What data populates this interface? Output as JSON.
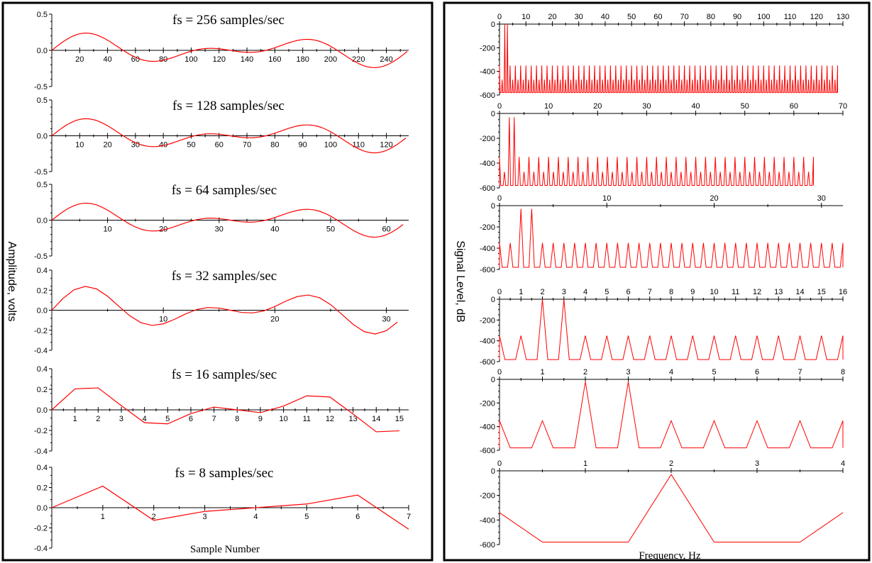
{
  "colors": {
    "trace": "#ff0000",
    "axis": "#000000",
    "frame": "#000000"
  },
  "left_panel": {
    "ylabel": "Amplitude, volts",
    "xlabel": "Sample Number"
  },
  "right_panel": {
    "ylabel": "Signal Level, dB",
    "xlabel": "Frequency, Hz"
  },
  "chart_data": [
    {
      "type": "line",
      "title": "fs = 256 samples/sec",
      "xlim": [
        0,
        256
      ],
      "ylim": [
        -0.5,
        0.5
      ],
      "xticks": [
        20,
        40,
        60,
        80,
        100,
        120,
        140,
        160,
        180,
        200,
        220,
        240
      ],
      "yticks": [
        0.5,
        0.0,
        -0.5
      ],
      "ytick_labels": [
        "0.5",
        "0.0",
        "-0.5"
      ],
      "series": [
        {
          "fs": 256,
          "n": 256,
          "signal": "0.125*sin(2*pi*2*t) + 0.125*sin(2*pi*3*t)"
        }
      ]
    },
    {
      "type": "line",
      "title": "fs = 128 samples/sec",
      "xlim": [
        0,
        128
      ],
      "ylim": [
        -0.5,
        0.5
      ],
      "xticks": [
        10,
        20,
        30,
        40,
        50,
        60,
        70,
        80,
        90,
        100,
        110,
        120
      ],
      "yticks": [
        0.5,
        0.0,
        -0.5
      ],
      "ytick_labels": [
        "0.5",
        "0.0",
        "-0.5"
      ],
      "series": [
        {
          "fs": 128,
          "n": 128,
          "signal": "0.125*sin(2*pi*2*t) + 0.125*sin(2*pi*3*t)"
        }
      ]
    },
    {
      "type": "line",
      "title": "fs = 64 samples/sec",
      "xlim": [
        0,
        64
      ],
      "ylim": [
        -0.5,
        0.5
      ],
      "xticks": [
        10,
        20,
        30,
        40,
        50,
        60
      ],
      "yticks": [
        0.5,
        0.0,
        -0.5
      ],
      "ytick_labels": [
        "0.5",
        "0.0",
        "-0.5"
      ],
      "series": [
        {
          "fs": 64,
          "n": 64,
          "signal": "0.125*sin(2*pi*2*t) + 0.125*sin(2*pi*3*t)"
        }
      ]
    },
    {
      "type": "line",
      "title": "fs = 32 samples/sec",
      "xlim": [
        0,
        32
      ],
      "ylim": [
        -0.4,
        0.4
      ],
      "xticks": [
        10,
        20,
        30
      ],
      "yticks": [
        0.4,
        0.2,
        0.0,
        -0.2,
        -0.4
      ],
      "ytick_labels": [
        "0.4",
        "0.2",
        "0.0",
        "-0.2",
        "-0.4"
      ],
      "series": [
        {
          "fs": 32,
          "n": 32,
          "signal": "0.125*sin(2*pi*2*t) + 0.125*sin(2*pi*3*t)"
        }
      ]
    },
    {
      "type": "line",
      "title": "fs = 16 samples/sec",
      "xlim": [
        0,
        15.4
      ],
      "ylim": [
        -0.4,
        0.4
      ],
      "xticks": [
        1,
        2,
        3,
        4,
        5,
        6,
        7,
        8,
        9,
        10,
        11,
        12,
        13,
        14,
        15
      ],
      "yticks": [
        0.4,
        0.2,
        0.0,
        -0.2,
        -0.4
      ],
      "ytick_labels": [
        "0.4",
        "0.2",
        "0.0",
        "-0.2",
        "-0.4"
      ],
      "series": [
        {
          "fs": 16,
          "n": 16,
          "signal": "0.125*sin(2*pi*2*t) + 0.125*sin(2*pi*3*t)"
        }
      ]
    },
    {
      "type": "line",
      "title": "fs = 8 samples/sec",
      "xlim": [
        0,
        7
      ],
      "ylim": [
        -0.4,
        0.4
      ],
      "xticks": [
        1,
        2,
        3,
        4,
        5,
        6,
        7
      ],
      "yticks": [
        0.4,
        0.2,
        0.0,
        -0.2,
        -0.4
      ],
      "ytick_labels": [
        "0.4",
        "0.2",
        "0.0",
        "-0.2",
        "-0.4"
      ],
      "series": [
        {
          "fs": 8,
          "n": 8,
          "signal": "0.125*sin(2*pi*2*t) + 0.125*sin(2*pi*3*t)"
        }
      ]
    },
    {
      "type": "line",
      "title": "",
      "xlim": [
        0,
        130
      ],
      "ylim": [
        -600,
        0
      ],
      "xticks": [
        0,
        10,
        20,
        30,
        40,
        50,
        60,
        70,
        80,
        90,
        100,
        110,
        120,
        130
      ],
      "yticks": [
        0,
        -200,
        -400,
        -600
      ],
      "ytick_labels": [
        "0",
        "-200",
        "-400",
        "-600"
      ],
      "series": [
        {
          "fs": 256,
          "n": 256,
          "peaks_hz": [
            2,
            3
          ],
          "peak_db": 0,
          "spur_db": -350,
          "spur_low_db": -470,
          "floor_db": -580
        }
      ]
    },
    {
      "type": "line",
      "title": "",
      "xlim": [
        0,
        70
      ],
      "ylim": [
        -600,
        0
      ],
      "xticks": [
        0,
        10,
        20,
        30,
        40,
        50,
        60,
        70
      ],
      "yticks": [
        0,
        -200,
        -400,
        -600
      ],
      "ytick_labels": [
        "0",
        "-200",
        "-400",
        "-600"
      ],
      "series": [
        {
          "fs": 128,
          "n": 128,
          "peaks_hz": [
            2,
            3
          ],
          "peak_db": -30,
          "spur_db": -350,
          "spur_low_db": -470,
          "floor_db": -580
        }
      ]
    },
    {
      "type": "line",
      "title": "",
      "xlim": [
        0,
        32
      ],
      "ylim": [
        -600,
        0
      ],
      "xticks": [
        0,
        10,
        20,
        30
      ],
      "yticks": [
        0,
        -200,
        -400,
        -600
      ],
      "ytick_labels": [
        "0",
        "-200",
        "-400",
        "-600"
      ],
      "series": [
        {
          "fs": 64,
          "n": 64,
          "peaks_hz": [
            2,
            3
          ],
          "peak_db": -30,
          "spur_db": -350,
          "floor_db": -580
        }
      ]
    },
    {
      "type": "line",
      "title": "",
      "xlim": [
        0,
        16
      ],
      "ylim": [
        -600,
        0
      ],
      "xticks": [
        0,
        1,
        2,
        3,
        4,
        5,
        6,
        7,
        8,
        9,
        10,
        11,
        12,
        13,
        14,
        15,
        16
      ],
      "yticks": [
        0,
        -200,
        -400,
        -600
      ],
      "ytick_labels": [
        "0",
        "-200",
        "-400",
        "-600"
      ],
      "series": [
        {
          "fs": 32,
          "n": 32,
          "peaks_hz": [
            2,
            3
          ],
          "peak_db": 0,
          "spur_db": -350,
          "floor_db": -580
        }
      ]
    },
    {
      "type": "line",
      "title": "",
      "xlim": [
        0,
        8
      ],
      "ylim": [
        -600,
        0
      ],
      "xticks": [
        0,
        1,
        2,
        3,
        4,
        5,
        6,
        7,
        8
      ],
      "yticks": [
        0,
        -200,
        -400,
        -600
      ],
      "ytick_labels": [
        "0",
        "-200",
        "-400",
        "-600"
      ],
      "series": [
        {
          "fs": 16,
          "n": 16,
          "peaks_hz": [
            2,
            3
          ],
          "peak_db": -20,
          "spur_db": -350,
          "floor_db": -580
        }
      ]
    },
    {
      "type": "line",
      "title": "",
      "xlim": [
        0,
        4
      ],
      "ylim": [
        -600,
        0
      ],
      "xticks": [
        0,
        1,
        2,
        3,
        4
      ],
      "ytick_labels": [
        "0",
        "-200",
        "-400",
        "-600"
      ],
      "yticks": [
        0,
        -200,
        -400,
        -600
      ],
      "series": [
        {
          "fs": 8,
          "n": 8,
          "points": [
            [
              0,
              -340
            ],
            [
              0.5,
              -580
            ],
            [
              1.5,
              -580
            ],
            [
              2,
              -30
            ],
            [
              2.5,
              -580
            ],
            [
              3.5,
              -580
            ],
            [
              4,
              -340
            ]
          ]
        }
      ]
    }
  ]
}
